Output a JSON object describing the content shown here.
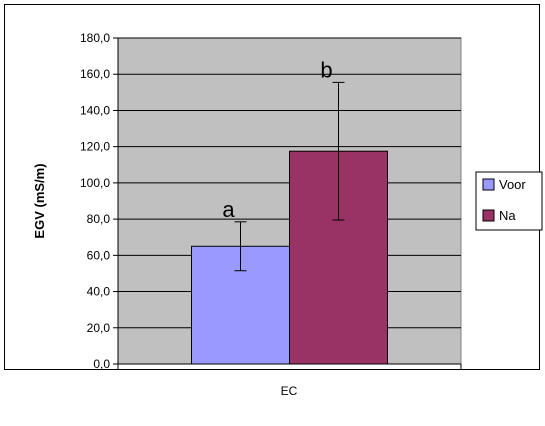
{
  "chart_data": {
    "type": "bar",
    "categories": [
      "EC"
    ],
    "series": [
      {
        "name": "Voor",
        "values": [
          65.0
        ],
        "error": [
          13.5
        ],
        "significance_label": "a",
        "color": "#9999ff"
      },
      {
        "name": "Na",
        "values": [
          117.5
        ],
        "error": [
          38.0
        ],
        "significance_label": "b",
        "color": "#993366"
      }
    ],
    "ylabel": "EGV (mS/m)",
    "xlabel": "",
    "ylim": [
      0,
      180
    ],
    "yticks": [
      "0,0",
      "20,0",
      "40,0",
      "60,0",
      "80,0",
      "100,0",
      "120,0",
      "140,0",
      "160,0",
      "180,0"
    ],
    "grid": true,
    "legend_position": "right",
    "plot_background": "#c0c0c0"
  }
}
